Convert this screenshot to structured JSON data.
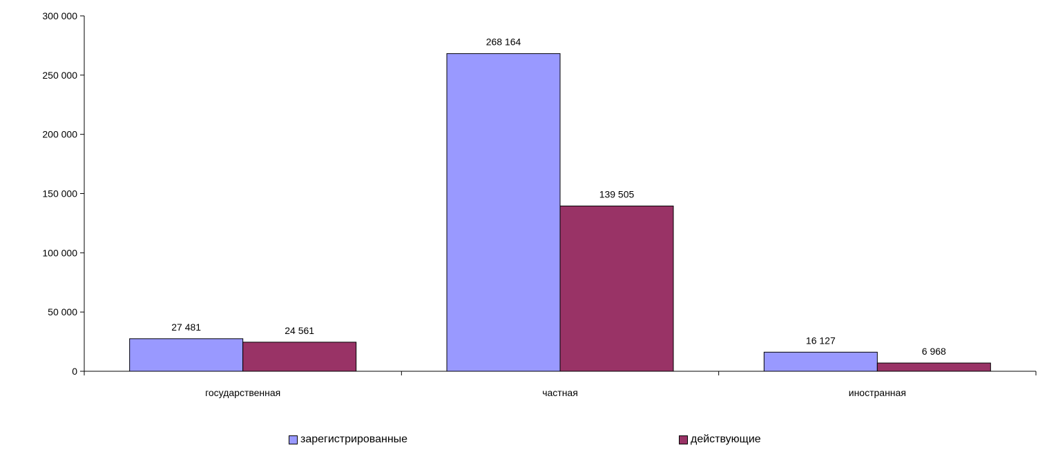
{
  "chart_data": {
    "type": "bar",
    "categories": [
      "государственная",
      "частная",
      "иностранная"
    ],
    "series": [
      {
        "name": "зарегистрированные",
        "color": "#9999ff",
        "values": [
          27481,
          268164,
          16127
        ],
        "labels": [
          "27 481",
          "268 164",
          "16 127"
        ]
      },
      {
        "name": "действующие",
        "color": "#993366",
        "values": [
          24561,
          139505,
          6968
        ],
        "labels": [
          "24 561",
          "139 505",
          "6 968"
        ]
      }
    ],
    "ylim": [
      0,
      300000
    ],
    "yticks": [
      0,
      50000,
      100000,
      150000,
      200000,
      250000,
      300000
    ],
    "ytick_labels": [
      "0",
      "50 000",
      "100 000",
      "150 000",
      "200 000",
      "250 000",
      "300 000"
    ],
    "grid": false,
    "legend_position": "bottom"
  }
}
